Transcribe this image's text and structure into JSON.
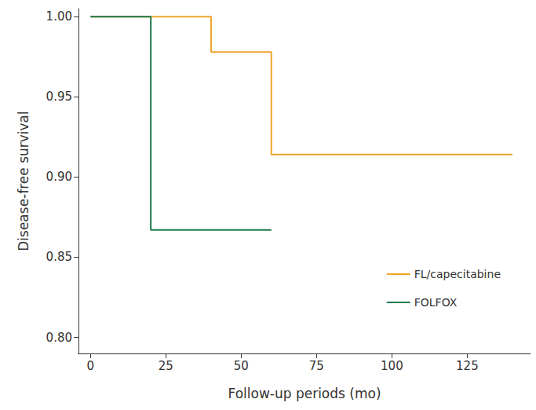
{
  "chart_data": {
    "type": "step",
    "x_label": "Follow-up periods (mo)",
    "y_label": "Disease-free survival",
    "xlim": [
      -4,
      146
    ],
    "xticks": [
      0,
      25,
      50,
      75,
      100,
      125
    ],
    "ylim": [
      0.79,
      1.005
    ],
    "yticks": [
      {
        "value": 0.8,
        "label": "0.80"
      },
      0.85,
      {
        "value": 0.9,
        "label": "0.90"
      },
      0.95,
      {
        "value": 1,
        "label": "1.00"
      }
    ],
    "grid": false,
    "legend": "lower right",
    "series": [
      {
        "name": "FL/capecitabine",
        "color": "#EFA52B",
        "x": [
          0,
          40,
          60,
          140
        ],
        "values": [
          1,
          0.978,
          0.914,
          0.914
        ]
      },
      {
        "name": "FOLFOX",
        "color": "#1D7A4E",
        "x": [
          0,
          20,
          60
        ],
        "values": [
          1,
          0.867,
          0.867
        ]
      }
    ]
  }
}
